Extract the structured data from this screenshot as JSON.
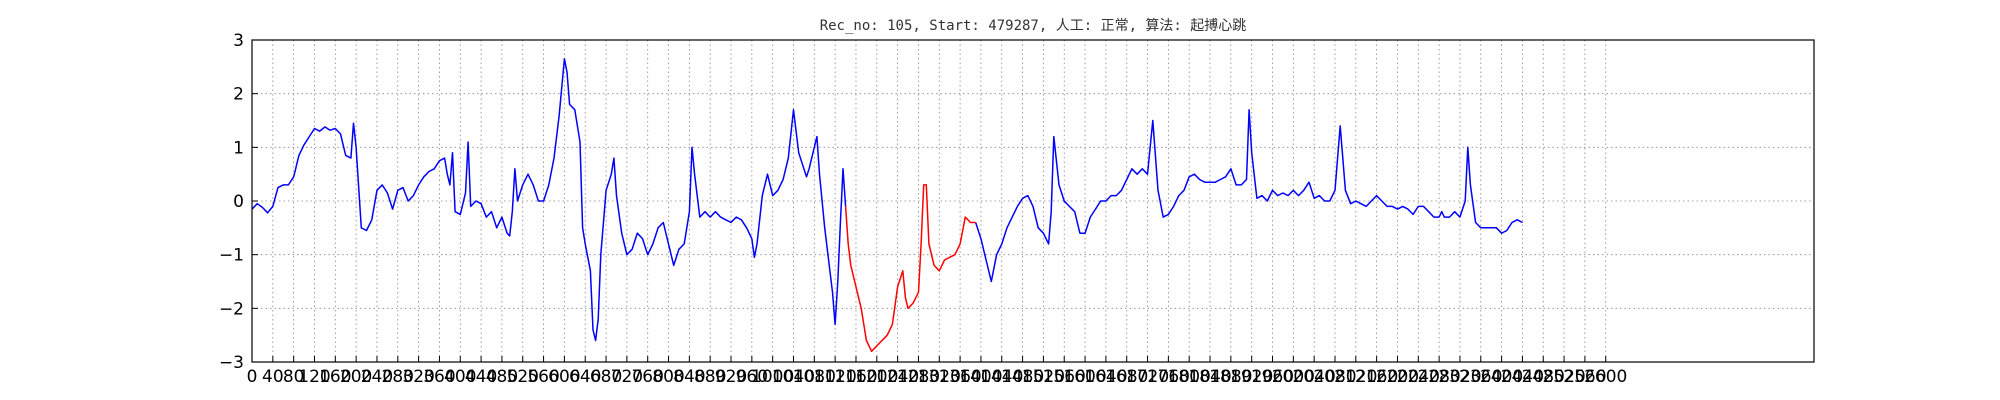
{
  "chart_data": {
    "type": "line",
    "title": "Rec_no: 105, Start: 479287, 人工: 正常, 算法: 起搏心跳",
    "xlabel": "",
    "ylabel": "",
    "xlim": [
      0,
      3000
    ],
    "ylim": [
      -3,
      3
    ],
    "yticks": [
      3,
      2,
      1,
      0,
      -1,
      -2,
      -3
    ],
    "xticks": [
      0,
      40,
      80,
      120,
      160,
      200,
      240,
      280,
      320,
      360,
      400,
      440,
      480,
      520,
      560,
      600,
      640,
      680,
      720,
      760,
      800,
      840,
      880,
      920,
      960,
      1000,
      1040,
      1080,
      1120,
      1160,
      1200,
      1240,
      1280,
      1320,
      1360,
      1400,
      1440,
      1480,
      1520,
      1560,
      1600,
      1640,
      1680,
      1720,
      1760,
      1800,
      1840,
      1880,
      1920,
      1960,
      2000,
      2040,
      2080,
      2120,
      2160,
      2200,
      2240,
      2280,
      2320,
      2360,
      2400,
      2440,
      2480,
      2520,
      2560,
      2600
    ],
    "grid": true,
    "colors": {
      "signal": "#0000ff",
      "highlight": "#ff0000",
      "grid": "#888888"
    },
    "series": [
      {
        "color": "#0000ff",
        "points": [
          [
            0,
            -0.15
          ],
          [
            10,
            -0.05
          ],
          [
            20,
            -0.12
          ],
          [
            30,
            -0.22
          ],
          [
            40,
            -0.1
          ],
          [
            50,
            0.25
          ],
          [
            60,
            0.3
          ],
          [
            70,
            0.3
          ],
          [
            80,
            0.45
          ],
          [
            90,
            0.85
          ],
          [
            100,
            1.05
          ],
          [
            110,
            1.2
          ],
          [
            120,
            1.35
          ],
          [
            130,
            1.3
          ],
          [
            140,
            1.38
          ],
          [
            150,
            1.32
          ],
          [
            160,
            1.35
          ],
          [
            170,
            1.25
          ],
          [
            180,
            0.85
          ],
          [
            190,
            0.8
          ],
          [
            195,
            1.45
          ],
          [
            200,
            1.0
          ],
          [
            210,
            -0.5
          ],
          [
            220,
            -0.55
          ],
          [
            230,
            -0.35
          ],
          [
            240,
            0.2
          ],
          [
            250,
            0.3
          ],
          [
            260,
            0.15
          ],
          [
            270,
            -0.15
          ],
          [
            280,
            0.2
          ],
          [
            290,
            0.25
          ],
          [
            300,
            0.0
          ],
          [
            310,
            0.1
          ],
          [
            320,
            0.3
          ],
          [
            330,
            0.45
          ],
          [
            340,
            0.55
          ],
          [
            350,
            0.6
          ],
          [
            360,
            0.75
          ],
          [
            370,
            0.8
          ],
          [
            375,
            0.5
          ],
          [
            380,
            0.3
          ],
          [
            385,
            0.9
          ],
          [
            390,
            -0.2
          ],
          [
            400,
            -0.25
          ],
          [
            410,
            0.15
          ],
          [
            415,
            1.1
          ],
          [
            420,
            -0.1
          ],
          [
            430,
            0.0
          ],
          [
            440,
            -0.05
          ],
          [
            450,
            -0.3
          ],
          [
            460,
            -0.2
          ],
          [
            470,
            -0.5
          ],
          [
            480,
            -0.3
          ],
          [
            490,
            -0.6
          ],
          [
            495,
            -0.65
          ],
          [
            500,
            -0.2
          ],
          [
            505,
            0.6
          ],
          [
            510,
            0.0
          ],
          [
            520,
            0.3
          ],
          [
            530,
            0.5
          ],
          [
            540,
            0.3
          ],
          [
            550,
            0.0
          ],
          [
            560,
            0.0
          ],
          [
            570,
            0.3
          ],
          [
            580,
            0.8
          ],
          [
            590,
            1.6
          ],
          [
            600,
            2.65
          ],
          [
            605,
            2.4
          ],
          [
            610,
            1.8
          ],
          [
            620,
            1.7
          ],
          [
            630,
            1.1
          ],
          [
            635,
            -0.5
          ],
          [
            640,
            -0.8
          ],
          [
            650,
            -1.3
          ],
          [
            655,
            -2.4
          ],
          [
            660,
            -2.6
          ],
          [
            665,
            -2.2
          ],
          [
            670,
            -1.0
          ],
          [
            680,
            0.2
          ],
          [
            690,
            0.5
          ],
          [
            695,
            0.8
          ],
          [
            700,
            0.1
          ],
          [
            710,
            -0.6
          ],
          [
            720,
            -1.0
          ],
          [
            730,
            -0.9
          ],
          [
            740,
            -0.6
          ],
          [
            750,
            -0.7
          ],
          [
            760,
            -1.0
          ],
          [
            770,
            -0.8
          ],
          [
            780,
            -0.5
          ],
          [
            790,
            -0.4
          ],
          [
            800,
            -0.8
          ],
          [
            810,
            -1.2
          ],
          [
            820,
            -0.9
          ],
          [
            830,
            -0.8
          ],
          [
            840,
            -0.2
          ],
          [
            845,
            1.0
          ],
          [
            850,
            0.5
          ],
          [
            860,
            -0.3
          ],
          [
            870,
            -0.2
          ],
          [
            880,
            -0.3
          ],
          [
            890,
            -0.2
          ],
          [
            900,
            -0.3
          ],
          [
            910,
            -0.35
          ],
          [
            920,
            -0.4
          ],
          [
            930,
            -0.3
          ],
          [
            940,
            -0.35
          ],
          [
            950,
            -0.5
          ],
          [
            960,
            -0.7
          ],
          [
            965,
            -1.05
          ],
          [
            970,
            -0.8
          ],
          [
            980,
            0.1
          ],
          [
            990,
            0.5
          ],
          [
            1000,
            0.1
          ],
          [
            1010,
            0.2
          ],
          [
            1020,
            0.4
          ],
          [
            1030,
            0.8
          ],
          [
            1040,
            1.7
          ],
          [
            1050,
            0.9
          ],
          [
            1060,
            0.6
          ],
          [
            1065,
            0.45
          ],
          [
            1070,
            0.6
          ],
          [
            1080,
            1.0
          ],
          [
            1085,
            1.2
          ],
          [
            1090,
            0.5
          ],
          [
            1100,
            -0.5
          ],
          [
            1110,
            -1.3
          ],
          [
            1115,
            -1.7
          ],
          [
            1120,
            -2.3
          ],
          [
            1125,
            -1.5
          ],
          [
            1130,
            -0.4
          ],
          [
            1135,
            0.6
          ],
          [
            1140,
            -0.1
          ]
        ]
      },
      {
        "color": "#ff0000",
        "points": [
          [
            1140,
            -0.1
          ],
          [
            1145,
            -0.8
          ],
          [
            1150,
            -1.2
          ],
          [
            1160,
            -1.6
          ],
          [
            1170,
            -2.0
          ],
          [
            1180,
            -2.6
          ],
          [
            1190,
            -2.8
          ],
          [
            1200,
            -2.7
          ],
          [
            1210,
            -2.6
          ],
          [
            1220,
            -2.5
          ],
          [
            1230,
            -2.3
          ],
          [
            1240,
            -1.6
          ],
          [
            1250,
            -1.3
          ],
          [
            1255,
            -1.8
          ],
          [
            1260,
            -2.0
          ],
          [
            1270,
            -1.9
          ],
          [
            1280,
            -1.7
          ],
          [
            1285,
            -0.8
          ],
          [
            1290,
            0.3
          ],
          [
            1295,
            0.3
          ],
          [
            1300,
            -0.8
          ],
          [
            1310,
            -1.2
          ],
          [
            1320,
            -1.3
          ],
          [
            1330,
            -1.1
          ],
          [
            1340,
            -1.05
          ],
          [
            1350,
            -1.0
          ],
          [
            1360,
            -0.8
          ],
          [
            1370,
            -0.3
          ],
          [
            1380,
            -0.4
          ],
          [
            1390,
            -0.4
          ]
        ]
      },
      {
        "color": "#0000ff",
        "points": [
          [
            1390,
            -0.4
          ],
          [
            1400,
            -0.7
          ],
          [
            1410,
            -1.1
          ],
          [
            1420,
            -1.5
          ],
          [
            1430,
            -1.0
          ],
          [
            1440,
            -0.8
          ],
          [
            1450,
            -0.5
          ],
          [
            1460,
            -0.3
          ],
          [
            1470,
            -0.1
          ],
          [
            1480,
            0.05
          ],
          [
            1490,
            0.1
          ],
          [
            1500,
            -0.1
          ],
          [
            1510,
            -0.5
          ],
          [
            1520,
            -0.6
          ],
          [
            1530,
            -0.8
          ],
          [
            1535,
            -0.2
          ],
          [
            1540,
            1.2
          ],
          [
            1550,
            0.3
          ],
          [
            1560,
            0.0
          ],
          [
            1570,
            -0.1
          ],
          [
            1580,
            -0.2
          ],
          [
            1590,
            -0.6
          ],
          [
            1600,
            -0.6
          ],
          [
            1610,
            -0.3
          ],
          [
            1620,
            -0.15
          ],
          [
            1630,
            0.0
          ],
          [
            1640,
            0.0
          ],
          [
            1650,
            0.1
          ],
          [
            1660,
            0.1
          ],
          [
            1670,
            0.2
          ],
          [
            1680,
            0.4
          ],
          [
            1690,
            0.6
          ],
          [
            1700,
            0.5
          ],
          [
            1710,
            0.6
          ],
          [
            1720,
            0.5
          ],
          [
            1730,
            1.5
          ],
          [
            1740,
            0.2
          ],
          [
            1750,
            -0.3
          ],
          [
            1760,
            -0.25
          ],
          [
            1770,
            -0.1
          ],
          [
            1780,
            0.1
          ],
          [
            1790,
            0.2
          ],
          [
            1800,
            0.45
          ],
          [
            1810,
            0.5
          ],
          [
            1820,
            0.4
          ],
          [
            1830,
            0.35
          ],
          [
            1840,
            0.35
          ],
          [
            1850,
            0.35
          ],
          [
            1860,
            0.4
          ],
          [
            1870,
            0.45
          ],
          [
            1880,
            0.6
          ],
          [
            1890,
            0.3
          ],
          [
            1900,
            0.3
          ],
          [
            1910,
            0.4
          ],
          [
            1915,
            1.7
          ],
          [
            1920,
            0.9
          ],
          [
            1930,
            0.05
          ],
          [
            1940,
            0.1
          ],
          [
            1950,
            0.0
          ],
          [
            1960,
            0.2
          ],
          [
            1970,
            0.1
          ],
          [
            1980,
            0.15
          ],
          [
            1990,
            0.1
          ],
          [
            2000,
            0.2
          ],
          [
            2010,
            0.1
          ],
          [
            2020,
            0.2
          ],
          [
            2030,
            0.35
          ],
          [
            2040,
            0.05
          ],
          [
            2050,
            0.1
          ],
          [
            2060,
            0.0
          ],
          [
            2070,
            0.0
          ],
          [
            2080,
            0.2
          ],
          [
            2090,
            1.4
          ],
          [
            2100,
            0.2
          ],
          [
            2110,
            -0.05
          ],
          [
            2120,
            0.0
          ],
          [
            2130,
            -0.05
          ],
          [
            2140,
            -0.1
          ],
          [
            2150,
            0.0
          ],
          [
            2160,
            0.1
          ],
          [
            2170,
            0.0
          ],
          [
            2180,
            -0.1
          ],
          [
            2190,
            -0.1
          ],
          [
            2200,
            -0.15
          ],
          [
            2210,
            -0.1
          ],
          [
            2220,
            -0.15
          ],
          [
            2230,
            -0.25
          ],
          [
            2240,
            -0.1
          ],
          [
            2250,
            -0.1
          ],
          [
            2260,
            -0.2
          ],
          [
            2270,
            -0.3
          ],
          [
            2280,
            -0.3
          ],
          [
            2285,
            -0.2
          ],
          [
            2290,
            -0.3
          ],
          [
            2300,
            -0.3
          ],
          [
            2310,
            -0.2
          ],
          [
            2320,
            -0.3
          ],
          [
            2330,
            0.0
          ],
          [
            2335,
            1.0
          ],
          [
            2340,
            0.3
          ],
          [
            2350,
            -0.4
          ],
          [
            2360,
            -0.5
          ],
          [
            2370,
            -0.5
          ],
          [
            2380,
            -0.5
          ],
          [
            2390,
            -0.5
          ],
          [
            2400,
            -0.6
          ],
          [
            2410,
            -0.55
          ],
          [
            2420,
            -0.4
          ],
          [
            2430,
            -0.35
          ],
          [
            2440,
            -0.4
          ]
        ]
      }
    ]
  }
}
